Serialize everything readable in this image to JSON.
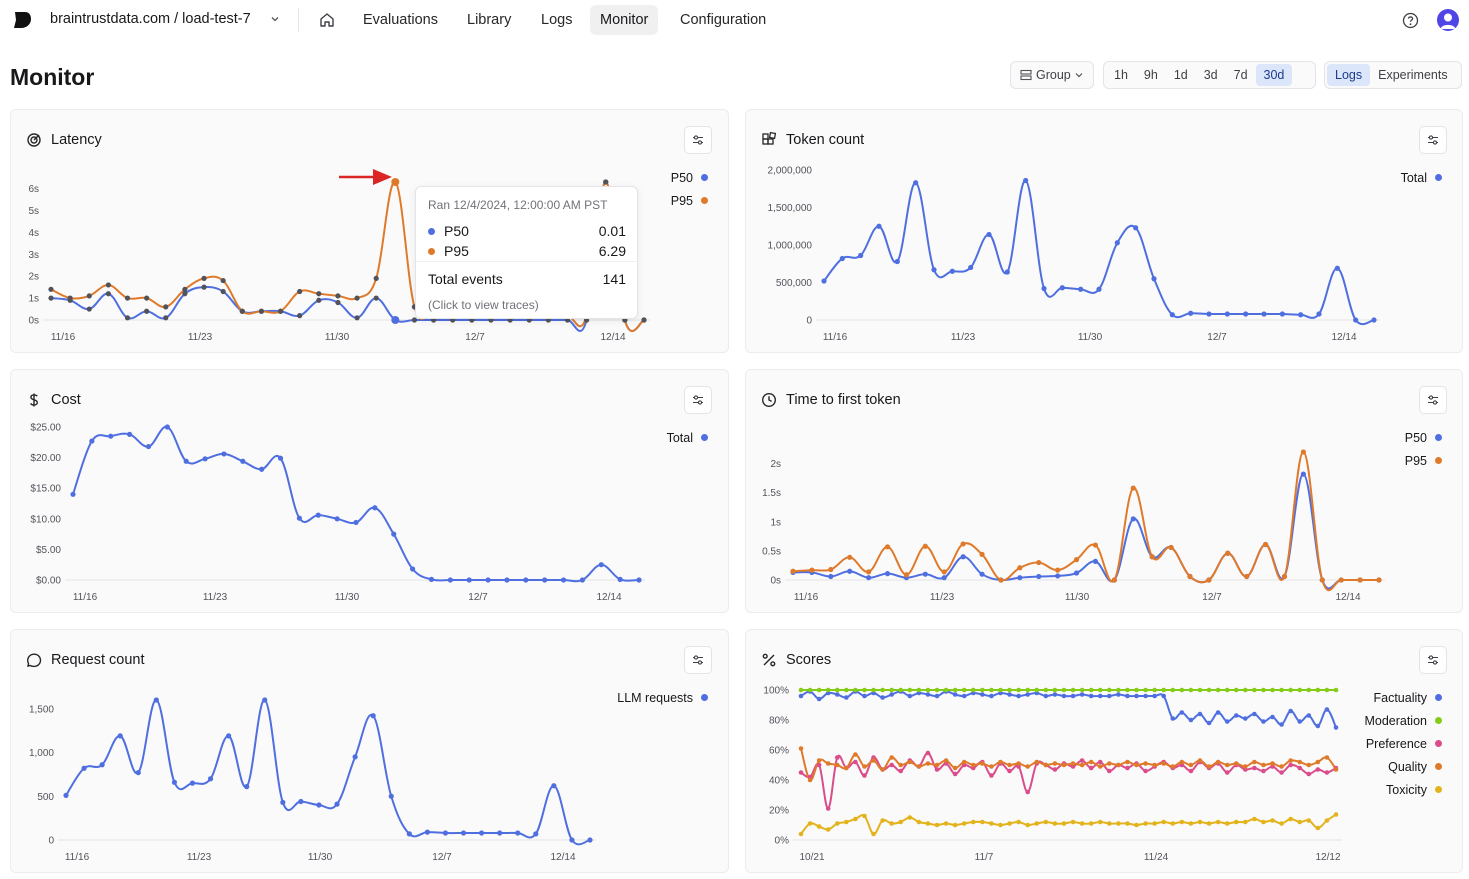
{
  "nav": {
    "org": "braintrustdata.com / load-test-7",
    "items": [
      {
        "label": "Evaluations",
        "active": false
      },
      {
        "label": "Library",
        "active": false
      },
      {
        "label": "Logs",
        "active": false
      },
      {
        "label": "Monitor",
        "active": true
      },
      {
        "label": "Configuration",
        "active": false
      }
    ]
  },
  "header": {
    "title": "Monitor",
    "group_label": "Group",
    "ranges": [
      "1h",
      "9h",
      "1d",
      "3d",
      "7d",
      "30d"
    ],
    "selected_range": "30d",
    "sources": [
      "Logs",
      "Experiments"
    ],
    "selected_source": "Logs"
  },
  "colors": {
    "blue": "#4f6fe0",
    "orange": "#e07a2b",
    "green": "#84cc16",
    "pink": "#db4c8c",
    "yellow": "#e3b31c",
    "accent": "#4f46e5"
  },
  "tooltip": {
    "header": "Ran 12/4/2024, 12:00:00 AM PST",
    "rows": [
      {
        "label": "P50",
        "value": "0.01"
      },
      {
        "label": "P95",
        "value": "6.29"
      }
    ],
    "total_label": "Total events",
    "total_value": "141",
    "footer": "(Click to view traces)"
  },
  "chart_data": [
    {
      "id": "latency",
      "type": "line",
      "title": "Latency",
      "x_ticks": [
        "11/16",
        "11/23",
        "11/30",
        "12/7",
        "12/14"
      ],
      "y_ticks": [
        "0s",
        "1s",
        "2s",
        "3s",
        "4s",
        "5s",
        "6s"
      ],
      "ylim": [
        0,
        6.3
      ],
      "x_count": 32,
      "series": [
        {
          "name": "P50",
          "color": "#4f6fe0",
          "values": [
            1.0,
            0.9,
            0.5,
            1.2,
            0.1,
            0.4,
            0.1,
            1.2,
            1.5,
            1.3,
            0.4,
            0.4,
            0.4,
            0.2,
            0.9,
            0.8,
            0.1,
            1.0,
            0.0,
            0.0,
            0.0,
            0.0,
            0.0,
            0.0,
            0.0,
            0.0,
            0.0,
            0.0,
            0.0,
            6.4,
            0.0,
            0.0
          ]
        },
        {
          "name": "P95",
          "color": "#e07a2b",
          "values": [
            1.4,
            1.0,
            1.1,
            1.6,
            1.0,
            1.0,
            0.6,
            1.4,
            1.9,
            1.8,
            0.4,
            0.4,
            0.4,
            1.3,
            1.2,
            1.1,
            1.0,
            1.9,
            6.3,
            0.6,
            0.3,
            0.2,
            0.2,
            0.2,
            0.2,
            0.2,
            0.2,
            0.2,
            0.2,
            6.4,
            0.0,
            0.0
          ]
        }
      ]
    },
    {
      "id": "tokens",
      "type": "line",
      "title": "Token count",
      "x_ticks": [
        "11/16",
        "11/23",
        "11/30",
        "12/7",
        "12/14"
      ],
      "y_ticks": [
        "0",
        "500,000",
        "1,000,000",
        "1,500,000",
        "2,000,000"
      ],
      "ylim": [
        0,
        2000000
      ],
      "x_count": 31,
      "series": [
        {
          "name": "Total",
          "color": "#4f6fe0",
          "values": [
            520000,
            820000,
            860000,
            1250000,
            780000,
            1830000,
            670000,
            650000,
            700000,
            1140000,
            640000,
            1860000,
            420000,
            430000,
            410000,
            410000,
            1030000,
            1230000,
            550000,
            70000,
            90000,
            80000,
            80000,
            80000,
            80000,
            80000,
            70000,
            80000,
            690000,
            0,
            0
          ]
        }
      ]
    },
    {
      "id": "cost",
      "type": "line",
      "title": "Cost",
      "x_ticks": [
        "11/16",
        "11/23",
        "11/30",
        "12/7",
        "12/14"
      ],
      "y_ticks": [
        "$0.00",
        "$5.00",
        "$10.00",
        "$15.00",
        "$20.00",
        "$25.00"
      ],
      "ylim": [
        0,
        25
      ],
      "x_count": 31,
      "series": [
        {
          "name": "Total",
          "color": "#4f6fe0",
          "values": [
            14.0,
            22.7,
            23.5,
            23.8,
            21.8,
            26.7,
            19.4,
            19.8,
            20.6,
            19.4,
            18.1,
            19.9,
            10.1,
            10.6,
            10.0,
            9.4,
            11.8,
            7.5,
            1.8,
            0.1,
            0.0,
            0.0,
            0.0,
            0.0,
            0.0,
            0.0,
            0.0,
            0.0,
            2.5,
            0.1,
            0.0
          ]
        }
      ]
    },
    {
      "id": "ttft",
      "type": "line",
      "title": "Time to first token",
      "x_ticks": [
        "11/16",
        "11/23",
        "11/30",
        "12/7",
        "12/14"
      ],
      "y_ticks": [
        "0s",
        "0.5s",
        "1s",
        "1.5s",
        "2s"
      ],
      "ylim": [
        0,
        2.2
      ],
      "x_count": 32,
      "series": [
        {
          "name": "P50",
          "color": "#4f6fe0",
          "values": [
            0.13,
            0.13,
            0.06,
            0.15,
            0.04,
            0.11,
            0.04,
            0.1,
            0.04,
            0.4,
            0.1,
            0.0,
            0.04,
            0.06,
            0.07,
            0.12,
            0.32,
            0.0,
            1.05,
            0.4,
            0.56,
            0.06,
            0.0,
            0.46,
            0.06,
            0.61,
            0.06,
            1.82,
            0.0,
            0.0,
            0.0,
            0.0
          ]
        },
        {
          "name": "P95",
          "color": "#e07a2b",
          "values": [
            0.15,
            0.17,
            0.18,
            0.39,
            0.14,
            0.57,
            0.09,
            0.58,
            0.14,
            0.62,
            0.44,
            0.0,
            0.21,
            0.3,
            0.17,
            0.35,
            0.6,
            0.0,
            1.58,
            0.4,
            0.56,
            0.06,
            0.0,
            0.46,
            0.06,
            0.61,
            0.06,
            2.27,
            0.0,
            0.0,
            0.0,
            0.0
          ]
        }
      ]
    },
    {
      "id": "requests",
      "type": "line",
      "title": "Request count",
      "x_ticks": [
        "11/16",
        "11/23",
        "11/30",
        "12/7",
        "12/14"
      ],
      "y_ticks": [
        "0",
        "500",
        "1,000",
        "1,500"
      ],
      "ylim": [
        0,
        1600
      ],
      "x_count": 30,
      "series": [
        {
          "name": "LLM requests",
          "color": "#4f6fe0",
          "values": [
            510,
            820,
            860,
            1190,
            770,
            1690,
            660,
            650,
            700,
            1190,
            610,
            1690,
            430,
            440,
            400,
            410,
            950,
            1420,
            500,
            70,
            90,
            80,
            80,
            80,
            80,
            80,
            70,
            620,
            0,
            0
          ]
        }
      ]
    },
    {
      "id": "scores",
      "type": "line",
      "title": "Scores",
      "x_ticks": [
        "10/21",
        "11/7",
        "11/24",
        "12/12"
      ],
      "y_ticks": [
        "0%",
        "20%",
        "40%",
        "60%",
        "80%",
        "100%"
      ],
      "ylim": [
        0,
        100
      ],
      "x_count": 60,
      "series": [
        {
          "name": "Factuality",
          "color": "#4f6fe0",
          "values": [
            96,
            99,
            94,
            98,
            97,
            95,
            99,
            96,
            98,
            95,
            97,
            99,
            96,
            98,
            97,
            96,
            99,
            97,
            96,
            98,
            97,
            96,
            98,
            97,
            96,
            97,
            98,
            96,
            97,
            96,
            96,
            97,
            96,
            96,
            96,
            97,
            96,
            96,
            96,
            96,
            96,
            81,
            85,
            80,
            84,
            78,
            85,
            79,
            83,
            81,
            84,
            79,
            82,
            77,
            86,
            79,
            83,
            76,
            87,
            75
          ]
        },
        {
          "name": "Moderation",
          "color": "#84cc16",
          "values": [
            100,
            100,
            100,
            100,
            100,
            100,
            100,
            100,
            100,
            100,
            100,
            100,
            100,
            100,
            100,
            100,
            100,
            100,
            100,
            100,
            100,
            100,
            100,
            100,
            100,
            100,
            100,
            100,
            100,
            100,
            100,
            100,
            100,
            100,
            100,
            100,
            100,
            100,
            100,
            100,
            100,
            100,
            100,
            100,
            100,
            100,
            100,
            100,
            100,
            100,
            100,
            100,
            100,
            100,
            100,
            100,
            100,
            100,
            100,
            100
          ]
        },
        {
          "name": "Preference",
          "color": "#db4c8c",
          "values": [
            45,
            42,
            50,
            21,
            55,
            48,
            52,
            43,
            55,
            47,
            50,
            46,
            53,
            49,
            58,
            47,
            51,
            44,
            50,
            48,
            52,
            43,
            51,
            46,
            49,
            32,
            51,
            50,
            47,
            51,
            49,
            53,
            48,
            52,
            46,
            50,
            48,
            51,
            46,
            49,
            52,
            48,
            50,
            46,
            52,
            48,
            51,
            45,
            50,
            47,
            48,
            46,
            49,
            45,
            50,
            48,
            44,
            47,
            45,
            48
          ]
        },
        {
          "name": "Quality",
          "color": "#e07a2b",
          "values": [
            61,
            40,
            53,
            51,
            50,
            48,
            57,
            49,
            53,
            47,
            55,
            50,
            52,
            49,
            51,
            50,
            53,
            48,
            52,
            50,
            51,
            49,
            52,
            50,
            51,
            49,
            52,
            50,
            51,
            50,
            51,
            50,
            52,
            49,
            51,
            50,
            52,
            50,
            51,
            50,
            51,
            49,
            52,
            50,
            53,
            49,
            52,
            50,
            51,
            49,
            52,
            50,
            51,
            49,
            53,
            52,
            50,
            52,
            55,
            47
          ]
        },
        {
          "name": "Toxicity",
          "color": "#e3b31c",
          "values": [
            4,
            11,
            9,
            7,
            11,
            12,
            14,
            16,
            4,
            13,
            11,
            12,
            15,
            12,
            11,
            10,
            11,
            10,
            11,
            12,
            12,
            11,
            10,
            11,
            12,
            10,
            11,
            12,
            11,
            11,
            12,
            11,
            11,
            12,
            11,
            11,
            11,
            10,
            11,
            11,
            12,
            11,
            12,
            11,
            12,
            11,
            12,
            11,
            12,
            12,
            14,
            12,
            13,
            11,
            14,
            12,
            13,
            8,
            13,
            17
          ]
        }
      ]
    }
  ]
}
